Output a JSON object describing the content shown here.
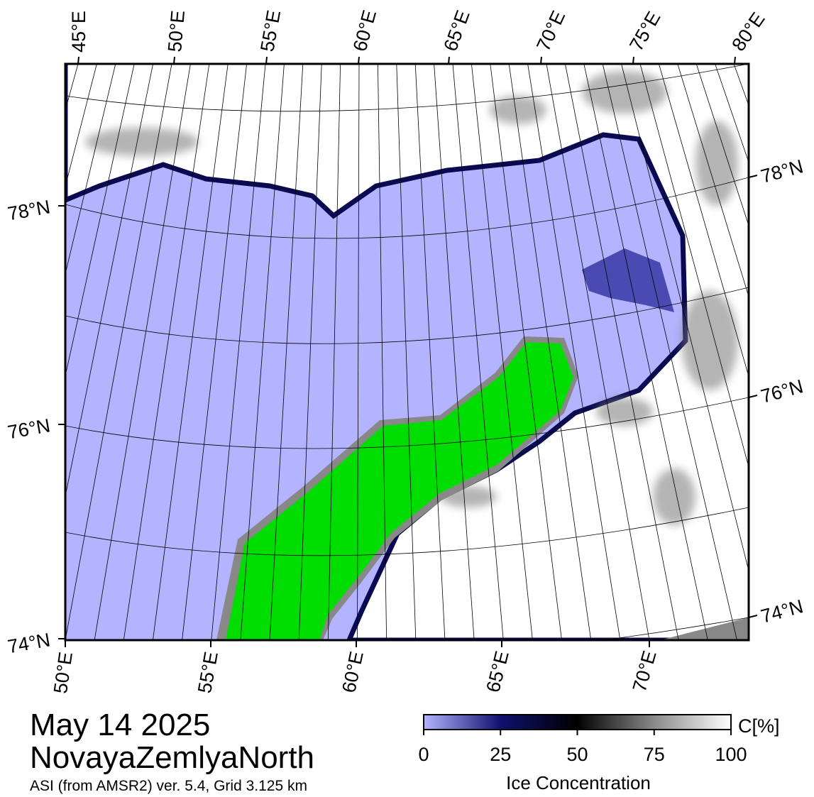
{
  "map": {
    "lon_labels_top": [
      "45°E",
      "50°E",
      "55°E",
      "60°E",
      "65°E",
      "70°E",
      "75°E",
      "80°E"
    ],
    "lon_labels_bottom": [
      "50°E",
      "55°E",
      "60°E",
      "65°E",
      "70°E"
    ],
    "lat_labels_left": [
      "78°N",
      "76°N",
      "74°N"
    ],
    "lat_labels_right": [
      "78°N",
      "76°N",
      "74°N"
    ]
  },
  "title": {
    "date": "May 14 2025",
    "region": "NovayaZemlyaNorth",
    "source": "ASI (from AMSR2) ver. 5.4,  Grid 3.125 km"
  },
  "colorbar": {
    "ticks": [
      0,
      25,
      50,
      75,
      100
    ],
    "range": [
      0,
      100
    ],
    "unit": "C[%]",
    "label": "Ice Concentration"
  }
}
